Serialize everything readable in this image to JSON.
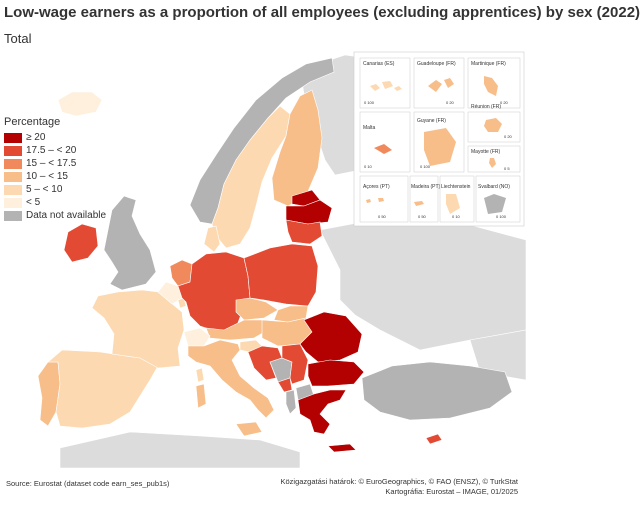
{
  "title": "Low-wage earners as a proportion of all employees (excluding apprentices) by sex (2022)",
  "subtitle": "Total",
  "legend": {
    "title": "Percentage",
    "items": [
      {
        "label": "≥ 20",
        "color": "#b30000"
      },
      {
        "label": "17.5 – < 20",
        "color": "#e34a33"
      },
      {
        "label": "15 – < 17.5",
        "color": "#f08a5c"
      },
      {
        "label": "10 – < 15",
        "color": "#f7be8a"
      },
      {
        "label": "5 – < 10",
        "color": "#fdd9b1"
      },
      {
        "label": "< 5",
        "color": "#fef0dc"
      },
      {
        "label": "Data not available",
        "color": "#b3b3b3"
      }
    ]
  },
  "insets": {
    "canarias": "Canarias (ES)",
    "guadeloupe": "Guadeloupe (FR)",
    "martinique": "Martinique (FR)",
    "reunion": "Réunion (FR)",
    "malta": "Malta",
    "guyane": "Guyane (FR)",
    "mayotte": "Mayotte (FR)",
    "acores": "Açores (PT)",
    "madeira": "Madeira (PT)",
    "liechtenstein": "Liechtenstein",
    "svalbard": "Svalbard (NO)",
    "scale_100": "0 100",
    "scale_20": "0 20",
    "scale_10": "0 10",
    "scale_50": "0 50",
    "scale_5": "0 5"
  },
  "source": "Source: Eurostat (dataset code earn_ses_pub1s)",
  "credit_line1": "Közigazgatási határok: © EuroGeographics, © FAO (ENSZ), © TurkStat",
  "credit_line2": "Kartográfia: Eurostat – IMAGE, 01/2025"
}
